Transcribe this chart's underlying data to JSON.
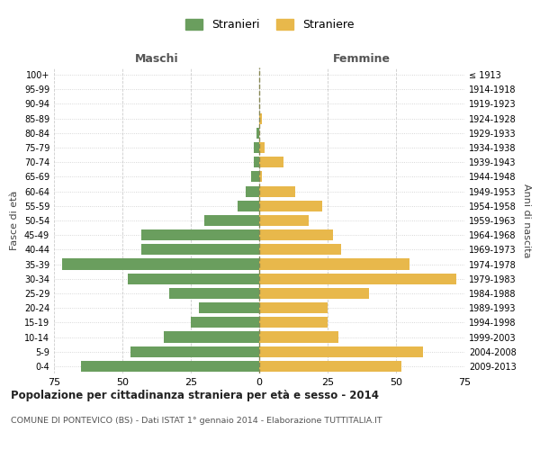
{
  "age_groups": [
    "0-4",
    "5-9",
    "10-14",
    "15-19",
    "20-24",
    "25-29",
    "30-34",
    "35-39",
    "40-44",
    "45-49",
    "50-54",
    "55-59",
    "60-64",
    "65-69",
    "70-74",
    "75-79",
    "80-84",
    "85-89",
    "90-94",
    "95-99",
    "100+"
  ],
  "birth_years": [
    "2009-2013",
    "2004-2008",
    "1999-2003",
    "1994-1998",
    "1989-1993",
    "1984-1988",
    "1979-1983",
    "1974-1978",
    "1969-1973",
    "1964-1968",
    "1959-1963",
    "1954-1958",
    "1949-1953",
    "1944-1948",
    "1939-1943",
    "1934-1938",
    "1929-1933",
    "1924-1928",
    "1919-1923",
    "1914-1918",
    "≤ 1913"
  ],
  "males": [
    65,
    47,
    35,
    25,
    22,
    33,
    48,
    72,
    43,
    43,
    20,
    8,
    5,
    3,
    2,
    2,
    1,
    0,
    0,
    0,
    0
  ],
  "females": [
    52,
    60,
    29,
    25,
    25,
    40,
    72,
    55,
    30,
    27,
    18,
    23,
    13,
    1,
    9,
    2,
    0,
    1,
    0,
    0,
    0
  ],
  "male_color": "#6a9e5e",
  "female_color": "#e8b84b",
  "grid_color": "#cccccc",
  "centerline_color": "#888855",
  "title": "Popolazione per cittadinanza straniera per età e sesso - 2014",
  "subtitle": "COMUNE DI PONTEVICO (BS) - Dati ISTAT 1° gennaio 2014 - Elaborazione TUTTITALIA.IT",
  "xlabel_left": "Maschi",
  "xlabel_right": "Femmine",
  "ylabel_left": "Fasce di età",
  "ylabel_right": "Anni di nascita",
  "legend_male": "Stranieri",
  "legend_female": "Straniere",
  "xlim": 75,
  "bar_height": 0.75,
  "background_color": "#ffffff"
}
